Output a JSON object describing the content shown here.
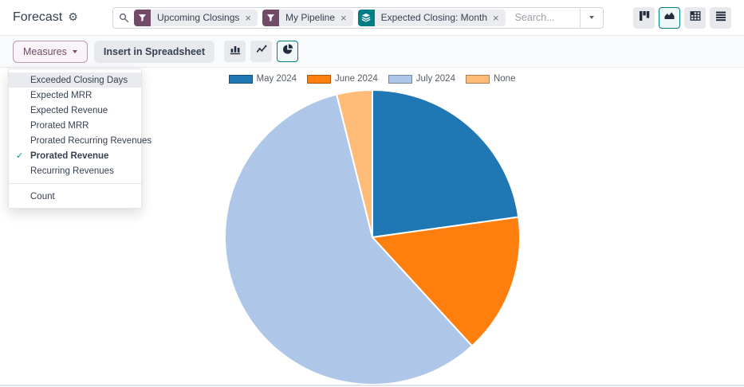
{
  "app": {
    "title": "Forecast"
  },
  "searchbar": {
    "placeholder": "Search...",
    "facets": [
      {
        "type": "filter",
        "icon": "filter-funnel-icon",
        "label": "Upcoming Closings"
      },
      {
        "type": "filter",
        "icon": "filter-funnel-icon",
        "label": "My Pipeline"
      },
      {
        "type": "groupby",
        "icon": "layers-icon",
        "label": "Expected Closing: Month"
      }
    ]
  },
  "view_switcher": {
    "buttons": [
      {
        "name": "kanban",
        "active": false
      },
      {
        "name": "graph",
        "active": true
      },
      {
        "name": "pivot",
        "active": false
      },
      {
        "name": "list",
        "active": false
      }
    ]
  },
  "toolbar": {
    "measures_label": "Measures",
    "insert_label": "Insert in Spreadsheet",
    "chart_types": [
      {
        "name": "bar",
        "active": false
      },
      {
        "name": "line",
        "active": false
      },
      {
        "name": "pie",
        "active": true
      }
    ]
  },
  "measures_menu": {
    "items": [
      {
        "label": "Exceeded Closing Days",
        "checked": false,
        "highlighted": true
      },
      {
        "label": "Expected MRR",
        "checked": false,
        "highlighted": false
      },
      {
        "label": "Expected Revenue",
        "checked": false,
        "highlighted": false
      },
      {
        "label": "Prorated MRR",
        "checked": false,
        "highlighted": false
      },
      {
        "label": "Prorated Recurring Revenues",
        "checked": false,
        "highlighted": false
      },
      {
        "label": "Prorated Revenue",
        "checked": true,
        "highlighted": false
      },
      {
        "label": "Recurring Revenues",
        "checked": false,
        "highlighted": false
      }
    ],
    "count_item": {
      "label": "Count",
      "checked": false
    }
  },
  "chart_data": {
    "type": "pie",
    "title": "",
    "categories": [
      "May 2024",
      "June 2024",
      "July 2024",
      "None"
    ],
    "values": [
      22.8,
      15.4,
      57.9,
      3.9
    ],
    "unit": "percent_of_total",
    "colors": [
      "#1f77b4",
      "#ff7f0e",
      "#aec7e8",
      "#ffbb78"
    ],
    "legend_position": "top",
    "start_angle_deg": 0,
    "clockwise": true,
    "radius_px": 185
  },
  "icons": {
    "gear": "cog-icon",
    "search": "search-icon",
    "caret": "caret-down-icon",
    "views": [
      "kanban-view-icon",
      "graph-view-icon",
      "pivot-view-icon",
      "list-view-icon"
    ],
    "chart_types": [
      "bar-chart-icon",
      "line-chart-icon",
      "pie-chart-icon"
    ]
  },
  "glyphs": {
    "gear": "⚙",
    "close": "×",
    "check": "✓"
  },
  "theme": {
    "primary_purple": "#714B67",
    "accent_teal": "#017E84",
    "button_gray": "#e7e9ed"
  }
}
